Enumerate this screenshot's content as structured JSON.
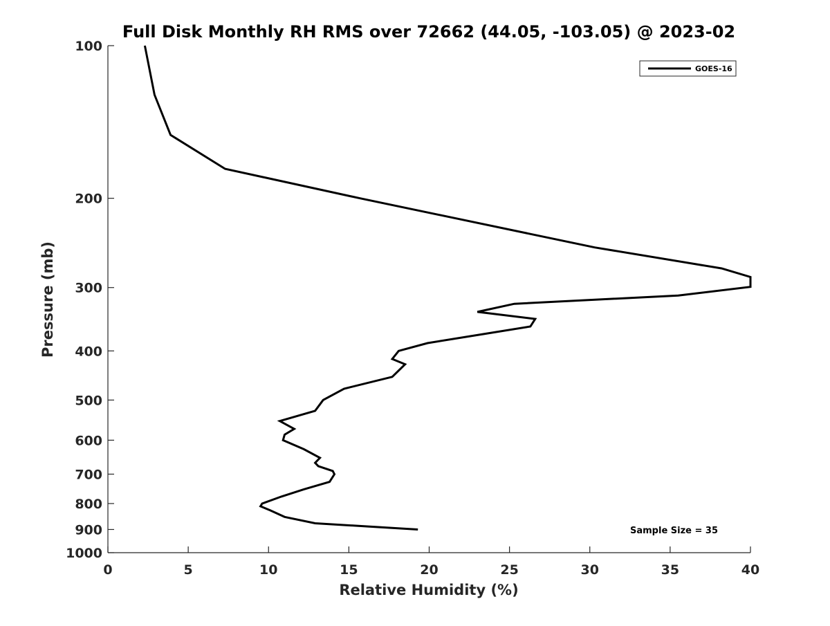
{
  "chart_data": {
    "type": "line",
    "title": "Full Disk Monthly RH RMS over 72662 (44.05, -103.05) @ 2023-02",
    "xlabel": "Relative Humidity (%)",
    "ylabel": "Pressure (mb)",
    "xlim": [
      0,
      40
    ],
    "ylim": [
      1000,
      100
    ],
    "y_scale": "log",
    "y_reversed": true,
    "grid": false,
    "legend_position": "top-right",
    "x_ticks": [
      0,
      5,
      10,
      15,
      20,
      25,
      30,
      35,
      40
    ],
    "y_ticks": [
      100,
      200,
      300,
      400,
      500,
      600,
      700,
      800,
      900,
      1000
    ],
    "series": [
      {
        "name": "GOES-16",
        "color": "#000000",
        "points": [
          [
            2.3,
            100
          ],
          [
            2.9,
            125
          ],
          [
            3.9,
            150
          ],
          [
            7.3,
            175
          ],
          [
            15.7,
            200
          ],
          [
            30.3,
            250
          ],
          [
            38.2,
            275
          ],
          [
            40.0,
            286
          ],
          [
            40.0,
            299
          ],
          [
            35.5,
            311
          ],
          [
            25.3,
            323
          ],
          [
            23.0,
            335
          ],
          [
            26.6,
            346
          ],
          [
            26.3,
            358
          ],
          [
            23.5,
            370
          ],
          [
            19.9,
            386
          ],
          [
            18.1,
            400
          ],
          [
            17.7,
            415
          ],
          [
            18.5,
            425
          ],
          [
            17.7,
            450
          ],
          [
            14.7,
            475
          ],
          [
            13.4,
            500
          ],
          [
            12.9,
            525
          ],
          [
            10.7,
            550
          ],
          [
            11.6,
            570
          ],
          [
            11.0,
            585
          ],
          [
            10.9,
            600
          ],
          [
            12.2,
            625
          ],
          [
            13.2,
            650
          ],
          [
            12.9,
            665
          ],
          [
            13.1,
            675
          ],
          [
            14.0,
            690
          ],
          [
            14.1,
            700
          ],
          [
            13.8,
            725
          ],
          [
            12.2,
            750
          ],
          [
            10.8,
            775
          ],
          [
            9.6,
            800
          ],
          [
            9.5,
            810
          ],
          [
            10.1,
            825
          ],
          [
            11.0,
            850
          ],
          [
            12.9,
            875
          ],
          [
            19.3,
            900
          ]
        ]
      }
    ],
    "annotation": "Sample Size = 35"
  }
}
